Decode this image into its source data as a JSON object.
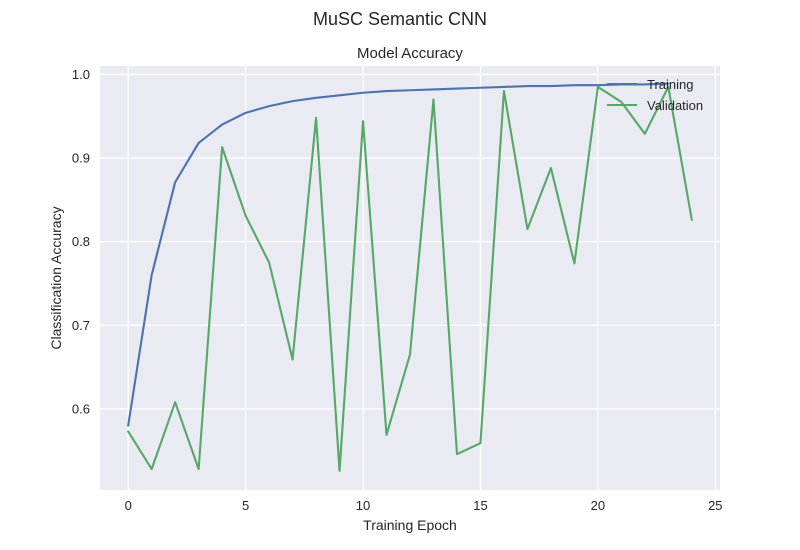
{
  "chart_data": {
    "type": "line",
    "suptitle": "MuSC Semantic CNN",
    "title": "Model Accuracy",
    "xlabel": "Training Epoch",
    "ylabel": "Classification Accuracy",
    "xlim": [
      -1.2,
      25.2
    ],
    "ylim": [
      0.503,
      1.01
    ],
    "xticks": [
      0,
      5,
      10,
      15,
      20,
      25
    ],
    "yticks": [
      0.6,
      0.7,
      0.8,
      0.9,
      1.0
    ],
    "ytick_labels": [
      "0.6",
      "0.7",
      "0.8",
      "0.9",
      "1.0"
    ],
    "grid": true,
    "legend_position": "top-right",
    "x": [
      0,
      1,
      2,
      3,
      4,
      5,
      6,
      7,
      8,
      9,
      10,
      11,
      12,
      13,
      14,
      15,
      16,
      17,
      18,
      19,
      20,
      21,
      22,
      23,
      24
    ],
    "series": [
      {
        "name": "Training",
        "color": "#4c72b0",
        "x": [
          0,
          1,
          2,
          3,
          4,
          5,
          6,
          7,
          8,
          9,
          10,
          11,
          12,
          13,
          14,
          15,
          16,
          17,
          18,
          19,
          20,
          21,
          22,
          23
        ],
        "values": [
          0.58,
          0.76,
          0.871,
          0.918,
          0.94,
          0.954,
          0.962,
          0.968,
          0.972,
          0.975,
          0.978,
          0.98,
          0.981,
          0.982,
          0.983,
          0.984,
          0.985,
          0.986,
          0.986,
          0.987,
          0.987,
          0.988,
          0.988,
          0.989
        ]
      },
      {
        "name": "Validation",
        "color": "#55a868",
        "x": [
          0,
          1,
          2,
          3,
          4,
          5,
          6,
          7,
          8,
          9,
          10,
          11,
          12,
          13,
          14,
          15,
          16,
          17,
          18,
          19,
          20,
          21,
          22,
          23,
          24
        ],
        "values": [
          0.573,
          0.528,
          0.608,
          0.528,
          0.913,
          0.831,
          0.775,
          0.659,
          0.948,
          0.526,
          0.944,
          0.569,
          0.665,
          0.97,
          0.546,
          0.559,
          0.98,
          0.815,
          0.888,
          0.774,
          0.985,
          0.967,
          0.929,
          0.985,
          0.826
        ]
      }
    ]
  }
}
